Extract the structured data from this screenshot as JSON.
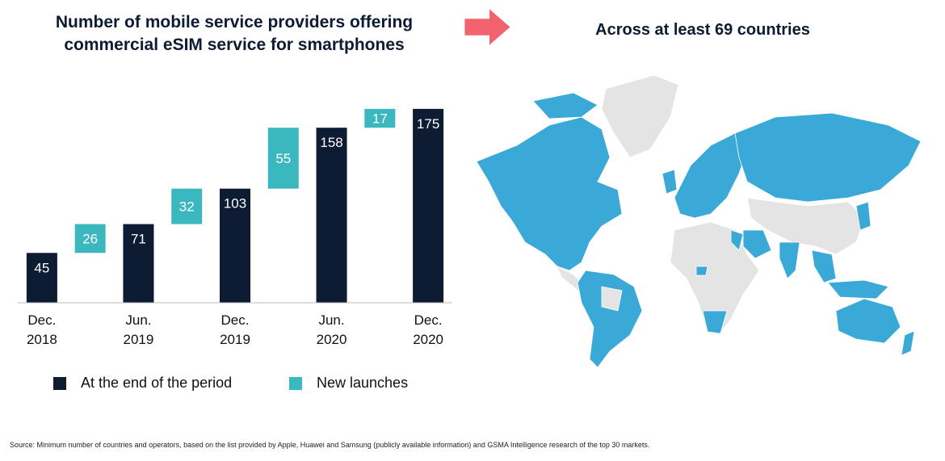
{
  "title": "Number of mobile service providers offering commercial eSIM service for smartphones",
  "map_title": "Across at least 69 countries",
  "source": "Source: Minimum number of countries and operators, based on the list provided by Apple, Huawei and Samsung (publicly available information) and GSMA Intelligence research of the top 30 markets.",
  "chart_data": {
    "type": "waterfall",
    "categories": [
      "Dec. 2018",
      null,
      "Jun. 2019",
      null,
      "Dec. 2019",
      null,
      "Jun. 2020",
      null,
      "Dec. 2020"
    ],
    "series": [
      {
        "name": "At the end of the period",
        "color": "#0d1b33",
        "values": [
          45,
          null,
          71,
          null,
          103,
          null,
          158,
          null,
          175
        ]
      },
      {
        "name": "New launches",
        "color": "#3bb7bf",
        "values": [
          null,
          26,
          null,
          32,
          null,
          55,
          null,
          17,
          null
        ]
      }
    ],
    "ylim": [
      0,
      180
    ]
  }
}
